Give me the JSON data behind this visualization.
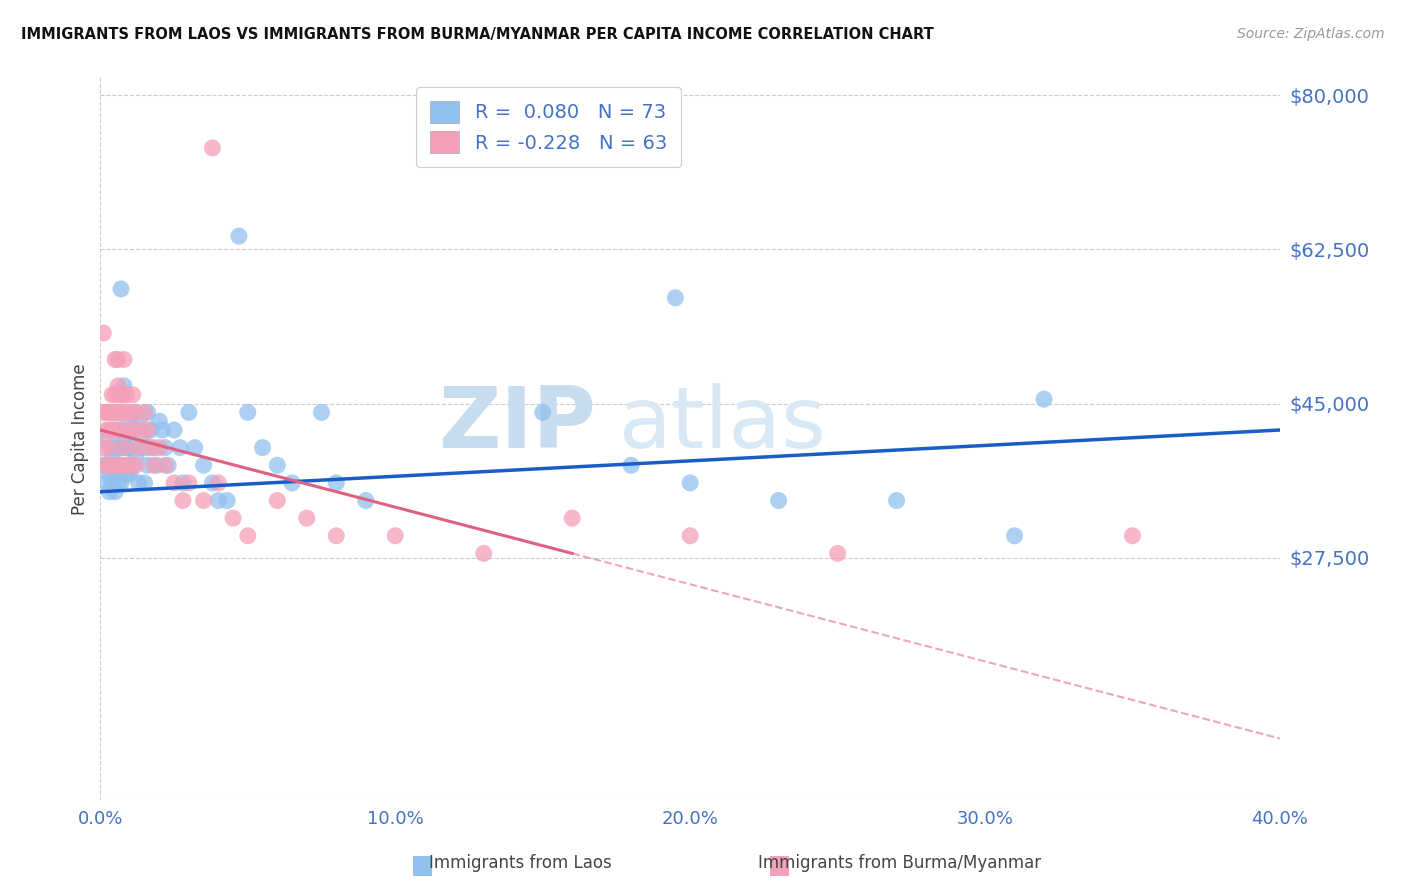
{
  "title": "IMMIGRANTS FROM LAOS VS IMMIGRANTS FROM BURMA/MYANMAR PER CAPITA INCOME CORRELATION CHART",
  "source": "Source: ZipAtlas.com",
  "ylabel": "Per Capita Income",
  "xlim": [
    0.0,
    0.4
  ],
  "ylim": [
    0,
    82000
  ],
  "yticks": [
    0,
    27500,
    45000,
    62500,
    80000
  ],
  "ytick_labels": [
    "",
    "$27,500",
    "$45,000",
    "$62,500",
    "$80,000"
  ],
  "xticks": [
    0.0,
    0.1,
    0.2,
    0.3,
    0.4
  ],
  "xtick_labels": [
    "0.0%",
    "10.0%",
    "20.0%",
    "30.0%",
    "40.0%"
  ],
  "laos_color": "#90C0EE",
  "burma_color": "#F4A0B8",
  "laos_R": 0.08,
  "laos_N": 73,
  "burma_R": -0.228,
  "burma_N": 63,
  "line_blue": "#1A5DC8",
  "line_pink": "#E06080",
  "tick_color": "#4472C4",
  "grid_color": "#CCCCCC",
  "background_color": "#FFFFFF",
  "watermark_zip": "ZIP",
  "watermark_atlas": "atlas",
  "laos_x": [
    0.001,
    0.002,
    0.002,
    0.003,
    0.003,
    0.003,
    0.004,
    0.004,
    0.004,
    0.004,
    0.005,
    0.005,
    0.005,
    0.005,
    0.006,
    0.006,
    0.006,
    0.006,
    0.007,
    0.007,
    0.007,
    0.007,
    0.007,
    0.008,
    0.008,
    0.008,
    0.008,
    0.009,
    0.009,
    0.009,
    0.01,
    0.01,
    0.01,
    0.011,
    0.011,
    0.012,
    0.012,
    0.013,
    0.013,
    0.014,
    0.015,
    0.015,
    0.016,
    0.016,
    0.017,
    0.018,
    0.019,
    0.02,
    0.021,
    0.022,
    0.023,
    0.025,
    0.027,
    0.028,
    0.03,
    0.032,
    0.035,
    0.038,
    0.04,
    0.043,
    0.05,
    0.055,
    0.06,
    0.065,
    0.075,
    0.08,
    0.09,
    0.15,
    0.18,
    0.2,
    0.23,
    0.27,
    0.31
  ],
  "laos_y": [
    38000,
    36000,
    41000,
    44000,
    37000,
    35000,
    42000,
    39000,
    36000,
    38000,
    44000,
    40000,
    37000,
    35000,
    44000,
    42000,
    38000,
    36000,
    58000,
    46000,
    42000,
    40000,
    36000,
    47000,
    44000,
    41000,
    38000,
    44000,
    40000,
    37000,
    43000,
    40000,
    37000,
    42000,
    38000,
    44000,
    39000,
    43000,
    36000,
    41000,
    40000,
    36000,
    44000,
    38000,
    42000,
    40000,
    38000,
    43000,
    42000,
    40000,
    38000,
    42000,
    40000,
    36000,
    44000,
    40000,
    38000,
    36000,
    34000,
    34000,
    44000,
    40000,
    38000,
    36000,
    44000,
    36000,
    34000,
    44000,
    38000,
    36000,
    34000,
    34000,
    30000
  ],
  "burma_x": [
    0.001,
    0.001,
    0.002,
    0.002,
    0.002,
    0.003,
    0.003,
    0.003,
    0.003,
    0.004,
    0.004,
    0.004,
    0.004,
    0.005,
    0.005,
    0.005,
    0.005,
    0.006,
    0.006,
    0.006,
    0.006,
    0.007,
    0.007,
    0.007,
    0.007,
    0.008,
    0.008,
    0.008,
    0.008,
    0.009,
    0.009,
    0.009,
    0.01,
    0.01,
    0.01,
    0.011,
    0.011,
    0.012,
    0.012,
    0.013,
    0.014,
    0.015,
    0.016,
    0.017,
    0.018,
    0.02,
    0.022,
    0.025,
    0.028,
    0.03,
    0.035,
    0.04,
    0.045,
    0.05,
    0.06,
    0.07,
    0.08,
    0.1,
    0.13,
    0.16,
    0.2,
    0.25,
    0.35
  ],
  "burma_y": [
    44000,
    40000,
    44000,
    42000,
    38000,
    44000,
    42000,
    40000,
    38000,
    46000,
    44000,
    42000,
    38000,
    50000,
    46000,
    44000,
    42000,
    50000,
    47000,
    44000,
    38000,
    46000,
    44000,
    42000,
    38000,
    50000,
    46000,
    44000,
    40000,
    46000,
    44000,
    38000,
    44000,
    42000,
    38000,
    46000,
    42000,
    44000,
    38000,
    40000,
    42000,
    44000,
    42000,
    40000,
    38000,
    40000,
    38000,
    36000,
    34000,
    36000,
    34000,
    36000,
    32000,
    30000,
    34000,
    32000,
    30000,
    30000,
    28000,
    32000,
    30000,
    28000,
    30000
  ]
}
